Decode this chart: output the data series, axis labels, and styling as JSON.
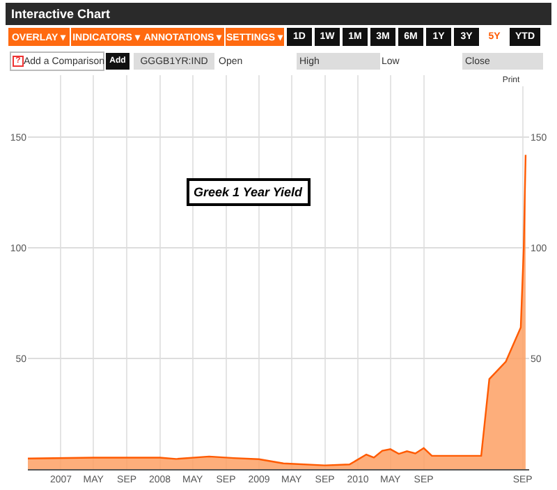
{
  "chart_data": {
    "type": "area",
    "title": "Greek 1 Year Yield",
    "annotations": [
      "Interactive Chart",
      "OVERLAY ▾",
      "INDICATORS ▾",
      "ANNOTATIONS ▾",
      "SETTINGS ▾",
      "1D",
      "1W",
      "1M",
      "3M",
      "6M",
      "1Y",
      "3Y",
      "5Y",
      "YTD",
      "?",
      "Add a Comparison",
      "Add",
      "GGGB1YR:IND",
      "Open",
      "High",
      "Low",
      "Close",
      "Print"
    ],
    "x": [
      "2006-09-01",
      "2007-05-01",
      "2008-01-01",
      "2008-03-01",
      "2008-07-01",
      "2008-10-01",
      "2009-01-01",
      "2009-04-01",
      "2009-09-01",
      "2009-12-01",
      "2010-02-01",
      "2010-03-01",
      "2010-04-01",
      "2010-05-01",
      "2010-06-01",
      "2010-07-01",
      "2010-08-01",
      "2010-09-01",
      "2010-10-01",
      "2011-04-01",
      "2011-05-01",
      "2011-07-01",
      "2011-08-25",
      "2011-09-05",
      "2011-09-12"
    ],
    "series": [
      {
        "color": "#ff5a00",
        "values": [
          4.8,
          5.2,
          5.2,
          4.6,
          5.7,
          5.0,
          4.5,
          2.6,
          1.7,
          2.1,
          6.6,
          5.2,
          8.3,
          9,
          6.9,
          8.1,
          7.1,
          9.5,
          6,
          6,
          40.7,
          48.6,
          64,
          100,
          142
        ]
      }
    ],
    "xlim": [
      "2006-09-01",
      "2011-09-25"
    ],
    "xticks": [
      {
        "value": "2007-01-01",
        "label": "2007"
      },
      {
        "value": "2007-05-01",
        "label": "MAY"
      },
      {
        "value": "2007-09-01",
        "label": "SEP"
      },
      {
        "value": "2008-01-01",
        "label": "2008"
      },
      {
        "value": "2008-05-01",
        "label": "MAY"
      },
      {
        "value": "2008-09-01",
        "label": "SEP"
      },
      {
        "value": "2009-01-01",
        "label": "2009"
      },
      {
        "value": "2009-05-01",
        "label": "MAY"
      },
      {
        "value": "2009-09-01",
        "label": "SEP"
      },
      {
        "value": "2010-01-01",
        "label": "2010"
      },
      {
        "value": "2010-05-01",
        "label": "MAY"
      },
      {
        "value": "2010-09-01",
        "label": "SEP"
      },
      {
        "value": "2011-09-01",
        "label": "SEP"
      }
    ],
    "ylim": [
      0,
      178
    ],
    "yticks": [
      50,
      100,
      150
    ],
    "y2lim": [
      0,
      178
    ],
    "y2ticks": [
      50,
      100,
      150
    ],
    "grid": true,
    "marker": "none",
    "line_style": "solid"
  }
}
